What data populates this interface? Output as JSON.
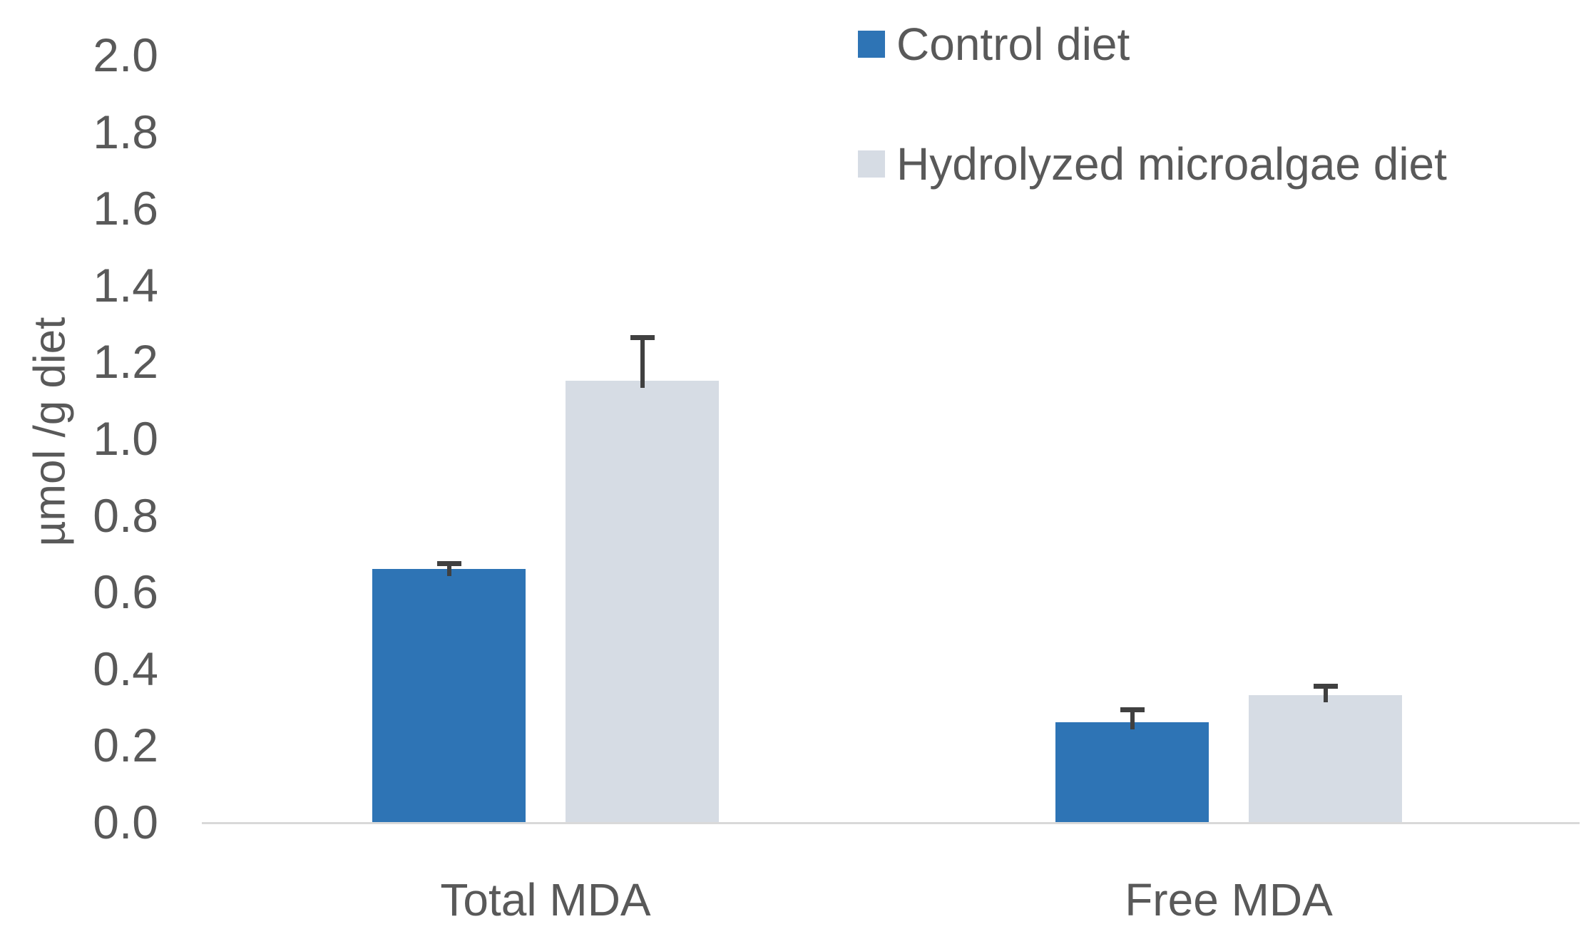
{
  "figure": {
    "background_color": "#ffffff",
    "axis_line_color": "#D9D9D9",
    "text_color": "#595959",
    "error_bar_color": "#404040"
  },
  "chart_data": {
    "type": "bar",
    "title": "",
    "xlabel": "",
    "ylabel": "µmol /g diet",
    "categories": [
      "Total MDA",
      "Free MDA"
    ],
    "series": [
      {
        "name": "Control diet",
        "color": "#2E74B5",
        "values": [
          0.66,
          0.26
        ],
        "errors_upper": [
          0.02,
          0.04
        ]
      },
      {
        "name": "Hydrolyzed microalgae diet",
        "color": "#D6DCE4",
        "values": [
          1.15,
          0.33
        ],
        "errors_upper": [
          0.12,
          0.03
        ]
      }
    ],
    "ylim": [
      0.0,
      2.0
    ],
    "ytick_step": 0.2,
    "ytick_labels": [
      "0.0",
      "0.2",
      "0.4",
      "0.6",
      "0.8",
      "1.0",
      "1.2",
      "1.4",
      "1.6",
      "1.8",
      "2.0"
    ],
    "grid": false,
    "legend_position": "top-right",
    "error_bars": "upper-only"
  }
}
